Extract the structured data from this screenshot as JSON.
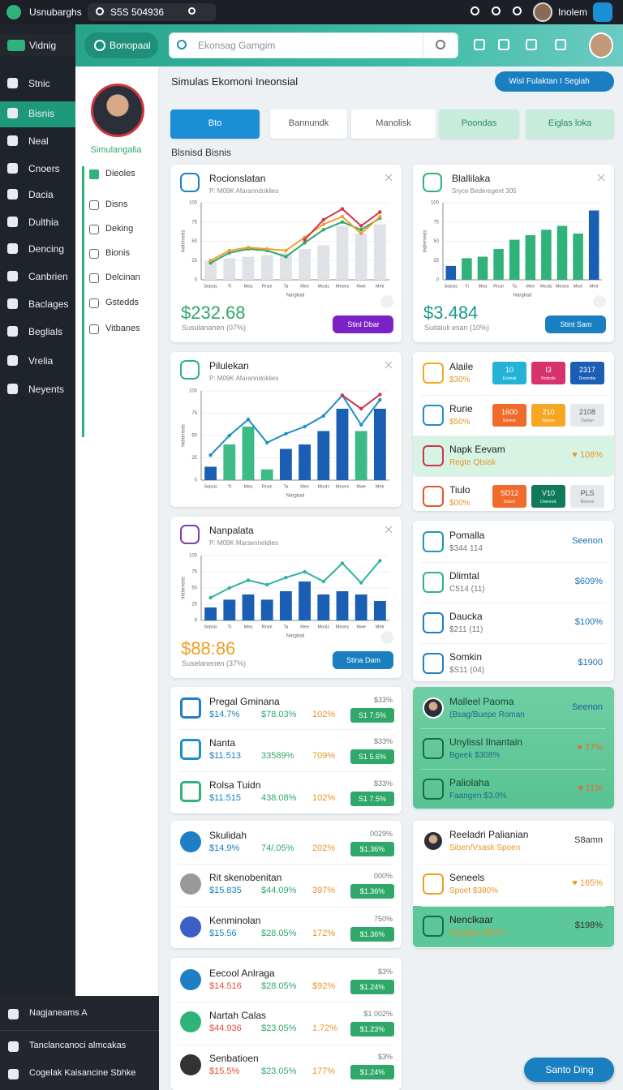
{
  "topbar": {
    "app": "Usnubarghs",
    "search": "S5S 504936",
    "user": "Inolem"
  },
  "sidebar": {
    "items": [
      "Vidnig",
      "Stnic",
      "Bisnis",
      "Neal",
      "Cnoers",
      "Dacia",
      "Dulthia",
      "Dencing",
      "Canbrien",
      "Baclages",
      "Beglials",
      "Vrelia",
      "Neyents"
    ],
    "footer": [
      "Nagjaneams A",
      "Tanclancanoci almcakas",
      "Cogelak Kaisancine Sbhke"
    ]
  },
  "subnav": {
    "name": "Simulangalia",
    "items": [
      "Dieoles",
      "Disns",
      "Deking",
      "Bionis",
      "Delcinan",
      "Gstedds",
      "Vitbanes"
    ]
  },
  "header": {
    "button": "Bonopaal",
    "search": "Ekonsag Gamgim"
  },
  "page": {
    "title": "Simulas Ekomoni Ineonsial",
    "action": "Wisl Fulaktan I Segiah",
    "tabs": [
      "Bto",
      "Bannundk",
      "Manolisk",
      "Poondas",
      "Eiglas loka"
    ],
    "section": "Blsnisd Bisnis",
    "float": "Santo Ding"
  },
  "charts": [
    {
      "title": "Rocionslatan",
      "subtitle": "P: M09K Afaranndoklies",
      "value": "$232.68",
      "caption": "Susulananen (07%)",
      "button": "Stinl Dbar",
      "ylabel": "Indlemeds",
      "xlabel": "Nargkad",
      "ylim": [
        0,
        100
      ],
      "yticks": [
        0,
        25,
        50,
        75,
        100
      ],
      "categories": [
        "Sepsis",
        "Tt",
        "Mea",
        "Rnse",
        "Ta",
        "Mee",
        "Moolz",
        "Meoes",
        "Mwe",
        "Metr"
      ],
      "bars": [
        25,
        28,
        30,
        32,
        35,
        40,
        45,
        70,
        60,
        72
      ],
      "bar_colors": [
        "#dfe3e8",
        "#dfe3e8",
        "#dfe3e8",
        "#dfe3e8",
        "#dfe3e8",
        "#dfe3e8",
        "#dfe3e8",
        "#dfe3e8",
        "#dfe3e8",
        "#dfe3e8"
      ],
      "lines": [
        {
          "color": "#2fa86a",
          "values": [
            22,
            35,
            40,
            38,
            30,
            48,
            65,
            75,
            65,
            80
          ]
        },
        {
          "color": "#f0a030",
          "values": [
            25,
            38,
            42,
            40,
            38,
            55,
            72,
            82,
            60,
            82
          ]
        },
        {
          "color": "#d0344c",
          "values": [
            null,
            null,
            null,
            null,
            null,
            52,
            78,
            92,
            70,
            88
          ]
        }
      ]
    },
    {
      "title": "Blallilaka",
      "subtitle": "Sryce Bederegent 305",
      "value": "$3.484",
      "caption": "Suitaluli esan (10%)",
      "button": "Stint Sam",
      "ylabel": "Indlemeds",
      "xlabel": "Nargkad",
      "ylim": [
        0,
        100
      ],
      "yticks": [
        0,
        25,
        50,
        75,
        100
      ],
      "categories": [
        "Sepsis",
        "Tt",
        "Mea",
        "Rnse",
        "Ta",
        "Mee",
        "Moolz",
        "Meoes",
        "Mwe",
        "Metr"
      ],
      "bars": [
        18,
        28,
        30,
        40,
        52,
        58,
        65,
        70,
        60,
        90
      ],
      "bar_colors": [
        "#1a5fb4",
        "#2fb37a",
        "#2fb37a",
        "#2fb37a",
        "#2fb37a",
        "#2fb37a",
        "#2fb37a",
        "#2fb37a",
        "#2fb37a",
        "#1a5fb4"
      ],
      "lines": []
    },
    {
      "title": "Pilulekan",
      "subtitle": "P: M09K Afaranndoklies",
      "value": null,
      "caption": null,
      "button": null,
      "ylabel": "Indlemeds",
      "xlabel": "Nargkad",
      "ylim": [
        0,
        100
      ],
      "yticks": [
        0,
        25,
        50,
        75,
        100
      ],
      "categories": [
        "Sepsis",
        "Tt",
        "Mea",
        "Rnse",
        "Ta",
        "Mee",
        "Moolz",
        "Meoes",
        "Mwe",
        "Metr"
      ],
      "bars": [
        15,
        40,
        60,
        12,
        35,
        40,
        55,
        80,
        55,
        80
      ],
      "bar_colors": [
        "#1a5fb4",
        "#3dbb86",
        "#3dbb86",
        "#3dbb86",
        "#1a5fb4",
        "#1a5fb4",
        "#1a5fb4",
        "#1a5fb4",
        "#3dbb86",
        "#1a5fb4"
      ],
      "lines": [
        {
          "color": "#1e8fc6",
          "values": [
            28,
            50,
            68,
            42,
            52,
            60,
            72,
            95,
            62,
            90
          ]
        },
        {
          "color": "#d0344c",
          "values": [
            null,
            null,
            null,
            null,
            null,
            null,
            null,
            95,
            80,
            96
          ]
        }
      ]
    },
    {
      "title": "Nanpalata",
      "subtitle": "P: M09K Marsenneldies",
      "value": "$88:86",
      "caption": "Suselanenen (37%)",
      "button": "Stina Dam",
      "ylabel": "Indlemeds",
      "xlabel": "Nargkad",
      "ylim": [
        0,
        100
      ],
      "yticks": [
        0,
        25,
        50,
        75,
        100
      ],
      "categories": [
        "Sepsis",
        "Tt",
        "Mea",
        "Rnse",
        "Ta",
        "Mee",
        "Moolz",
        "Meoes",
        "Mwe",
        "Metr"
      ],
      "bars": [
        20,
        32,
        40,
        32,
        45,
        60,
        40,
        45,
        40,
        30
      ],
      "bar_colors": [
        "#1a5fb4",
        "#1a5fb4",
        "#1a5fb4",
        "#1a5fb4",
        "#1a5fb4",
        "#1a5fb4",
        "#1a5fb4",
        "#1a5fb4",
        "#1a5fb4",
        "#1a5fb4"
      ],
      "lines": [
        {
          "color": "#2fb3a0",
          "values": [
            35,
            50,
            62,
            55,
            66,
            75,
            60,
            88,
            58,
            92
          ]
        }
      ]
    }
  ],
  "list_a": [
    {
      "name": "Alaile",
      "sub": "$30%",
      "boxes": [
        {
          "label": "10",
          "sub": "Eonesli"
        },
        {
          "label": "I3",
          "sub": "Rotsrde"
        },
        {
          "label": "2317",
          "sub": "Dreorobe"
        }
      ]
    },
    {
      "name": "Rurie",
      "sub": "$50%",
      "boxes": [
        {
          "label": "1600",
          "sub": "Etnvoe"
        },
        {
          "label": "210",
          "sub": "Rienoe"
        },
        {
          "label": "2108",
          "sub": "Oanlon"
        }
      ]
    },
    {
      "name": "Napk Eevam",
      "sub": "Regte Qtsisk",
      "right": "♥ 108%"
    },
    {
      "name": "Tiulo",
      "sub": "$00%",
      "boxes": [
        {
          "label": "SD12",
          "sub": "Doesn"
        },
        {
          "label": "V10",
          "sub": "Doenock"
        },
        {
          "label": "PLS",
          "sub": "Bsnces"
        }
      ]
    }
  ],
  "list_b": [
    {
      "name": "Pomalla",
      "sub": "$344 114",
      "right": "Seenon"
    },
    {
      "name": "Dlimtal",
      "sub": "C514 (11)",
      "right": "$609%"
    },
    {
      "name": "Daucka",
      "sub": "$211 (11)",
      "right": "$100%"
    },
    {
      "name": "Somkin",
      "sub": "$S11 (04)",
      "right": "$1900"
    }
  ],
  "list_c": [
    {
      "name": "Malleel Paoma",
      "sub": "(Bsag/Buepe Roman",
      "right": "Seenon"
    },
    {
      "name": "Unylissl Ilnantain",
      "sub": "Bgeek $308%",
      "right": "♥ 77%"
    },
    {
      "name": "Paliolaha",
      "sub": "Faangen $3.0%",
      "right": "♥ 11%"
    }
  ],
  "list_d": [
    {
      "name": "Reeladri Palianian",
      "sub": "Siben/Vsask Spoen",
      "right": "S8amn"
    },
    {
      "name": "Seneels",
      "sub": "Spoet $380%",
      "right": "♥ 165%"
    },
    {
      "name": "Nenclkaar",
      "sub": "Faangen $02%",
      "right": "$198%"
    }
  ],
  "rows": [
    [
      {
        "name": "Pregal Gminana",
        "a": "$14.7%",
        "b": "$78.03%",
        "c": "102%",
        "top": "$33%",
        "button": "S1 7.5%"
      },
      {
        "name": "Nanta",
        "a": "$11.513",
        "b": "33589%",
        "c": "709%",
        "top": "$33%",
        "button": "S1 5.6%"
      },
      {
        "name": "Rolsa Tuidn",
        "a": "$11.515",
        "b": "438.08%",
        "c": "102%",
        "top": "$33%",
        "button": "S1 7.5%"
      }
    ],
    [
      {
        "name": "Skulidah",
        "a": "$14.9%",
        "b": "74/.05%",
        "c": "202%",
        "top": "0029%",
        "button": "$1.36%"
      },
      {
        "name": "Rit skenobenitan",
        "a": "$15.835",
        "b": "$44.09%",
        "c": "397%",
        "top": "000%",
        "button": "$1.36%"
      },
      {
        "name": "Kenminolan",
        "a": "$15.56",
        "b": "$28.05%",
        "c": "172%",
        "top": "750%",
        "button": "$1.36%"
      }
    ],
    [
      {
        "name": "Eecool Anlraga",
        "a": "$14.516",
        "b": "$28.05%",
        "c": "$92%",
        "top": "$3%",
        "button": "$1.24%"
      },
      {
        "name": "Nartah Calas",
        "a": "$44.936",
        "b": "$23.05%",
        "c": "1.72%",
        "top": "$1 002%",
        "button": "$1.23%"
      },
      {
        "name": "Senbatioen",
        "a": "$15.5%",
        "b": "$23.05%",
        "c": "177%",
        "top": "$3%",
        "button": "$1.24%"
      }
    ]
  ]
}
